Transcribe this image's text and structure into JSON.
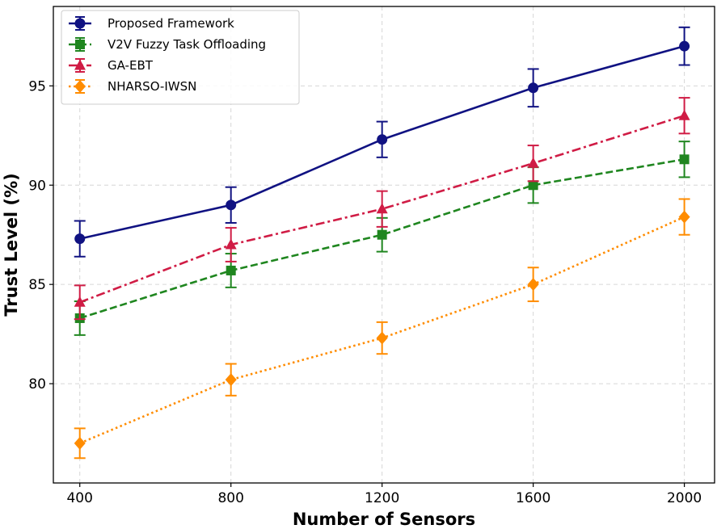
{
  "chart_data": {
    "type": "line",
    "title": "",
    "xlabel": "Number of Sensors",
    "ylabel": "Trust Level (%)",
    "x": [
      400,
      800,
      1200,
      1600,
      2000
    ],
    "x_tick_labels": [
      "400",
      "800",
      "1200",
      "1600",
      "2000"
    ],
    "y_ticks": [
      80,
      85,
      90,
      95
    ],
    "y_tick_labels": [
      "80",
      "85",
      "90",
      "95"
    ],
    "xlim": [
      330,
      2080
    ],
    "ylim": [
      75,
      99
    ],
    "grid": true,
    "legend_position": "top-left",
    "series": [
      {
        "name": "Proposed Framework",
        "values": [
          87.3,
          89.0,
          92.3,
          94.9,
          97.0
        ],
        "errors": [
          0.9,
          0.9,
          0.9,
          0.95,
          0.95
        ],
        "color": "#101282",
        "marker": "circle",
        "linestyle": "solid"
      },
      {
        "name": "V2V Fuzzy Task Offloading",
        "values": [
          83.3,
          85.7,
          87.5,
          90.0,
          91.3
        ],
        "errors": [
          0.85,
          0.85,
          0.85,
          0.9,
          0.9
        ],
        "color": "#1f861f",
        "marker": "square",
        "linestyle": "dashed"
      },
      {
        "name": "GA-EBT",
        "values": [
          84.1,
          87.0,
          88.8,
          91.1,
          93.5
        ],
        "errors": [
          0.85,
          0.85,
          0.9,
          0.9,
          0.9
        ],
        "color": "#d01c45",
        "marker": "triangle",
        "linestyle": "dashdot"
      },
      {
        "name": "NHARSO-IWSN",
        "values": [
          77.0,
          80.2,
          82.3,
          85.0,
          88.4
        ],
        "errors": [
          0.75,
          0.8,
          0.8,
          0.85,
          0.9
        ],
        "color": "#ff8c00",
        "marker": "diamond",
        "linestyle": "dotted"
      }
    ]
  }
}
